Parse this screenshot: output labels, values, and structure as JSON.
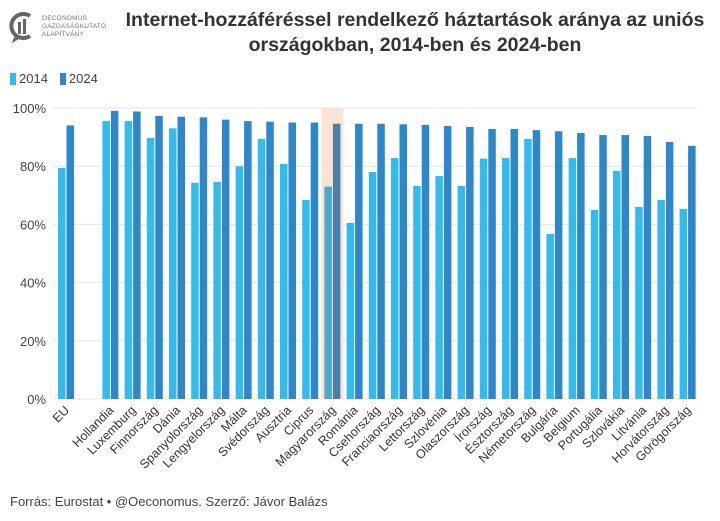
{
  "logo": {
    "lines": [
      "OECONOMUS",
      "GAZDASÁGKUTATÓ",
      "ALAPÍTVÁNY"
    ]
  },
  "footer": "Forrás: Eurostat • @Oeconomus. Szerző: Jávor Balázs",
  "highlight": "Magyarország",
  "colors": {
    "s2014": "#33bbee",
    "s2024": "#2d87c9",
    "highlight": "#fbe3d6"
  },
  "chart_data": {
    "type": "bar",
    "title": "Internet-hozzáféréssel rendelkező háztartások aránya az uniós országokban, 2014-ben és 2024-ben",
    "xlabel": "",
    "ylabel": "",
    "ylim": [
      0,
      100
    ],
    "yticks": [
      "0%",
      "20%",
      "40%",
      "60%",
      "80%",
      "100%"
    ],
    "legend": "top-left",
    "categories": [
      "EU",
      "Hollandia",
      "Luxemburg",
      "Finnország",
      "Dánia",
      "Spanyolország",
      "Lengyelország",
      "Málta",
      "Svédország",
      "Ausztria",
      "Ciprus",
      "Magyarország",
      "Románia",
      "Csehország",
      "Franciaország",
      "Lettország",
      "Szlovénia",
      "Olaszország",
      "Írország",
      "Észtország",
      "Németország",
      "Bulgária",
      "Belgium",
      "Portugália",
      "Szlovákia",
      "Litvánia",
      "Horvátország",
      "Görögország"
    ],
    "series": [
      {
        "name": "2014",
        "values": [
          79.4,
          95.5,
          95.5,
          89.7,
          93,
          74.3,
          74.6,
          80,
          89.4,
          80.8,
          68.4,
          73,
          60.5,
          78,
          82.8,
          73.2,
          76.6,
          73.2,
          82.6,
          82.8,
          89.4,
          56.7,
          82.8,
          65,
          78.4,
          66,
          68.4,
          65.3
        ]
      },
      {
        "name": "2024",
        "values": [
          94,
          99,
          98.8,
          97.3,
          97,
          96.8,
          96,
          95.5,
          95.3,
          95,
          95,
          94.6,
          94.6,
          94.6,
          94.4,
          94.2,
          93.8,
          93.5,
          92.8,
          92.8,
          92.4,
          92,
          91.4,
          90.7,
          90.7,
          90.4,
          88.3,
          87
        ]
      }
    ]
  }
}
